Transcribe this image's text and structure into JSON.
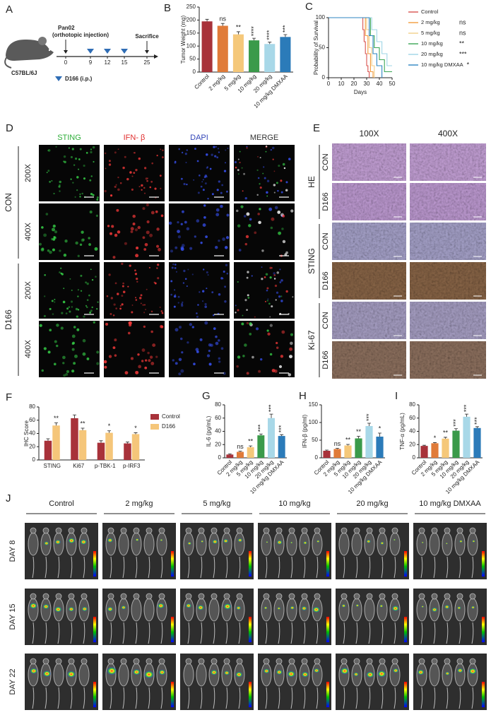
{
  "panel_labels": [
    "A",
    "B",
    "C",
    "D",
    "E",
    "F",
    "G",
    "H",
    "I",
    "J"
  ],
  "timeline": {
    "strain": "C57BL/6J",
    "injection": "Pan02",
    "injection_note": "(orthotopic injection)",
    "days": [
      0,
      9,
      12,
      15,
      25
    ],
    "sacrifice": "Sacrifice",
    "treatment": "D166 (i.p.)"
  },
  "chart_data": [
    {
      "type": "bar",
      "ylabel": "Tumor Weight (mg)",
      "categories": [
        "Control",
        "2 mg/kg",
        "5 mg/kg",
        "10 mg/kg",
        "20 mg/kg",
        "10 mg/kg DMXAA"
      ],
      "values": [
        195,
        178,
        145,
        122,
        108,
        135
      ],
      "errors": [
        8,
        9,
        10,
        8,
        7,
        9
      ],
      "colors": [
        "#a8323a",
        "#e07b39",
        "#f5c87a",
        "#3a9a4a",
        "#a8d8e8",
        "#2b7bb9"
      ],
      "annotations": [
        null,
        "ns",
        "**",
        "****",
        "****",
        "***"
      ],
      "ylim": [
        0,
        250
      ],
      "yticks": [
        0,
        50,
        100,
        150,
        200,
        250
      ]
    },
    {
      "type": "line",
      "step": true,
      "xlabel": "Days",
      "ylabel": "Probability of Survival",
      "xlim": [
        0,
        50
      ],
      "xticks": [
        0,
        10,
        20,
        30,
        40,
        50
      ],
      "ylim": [
        0,
        100
      ],
      "yticks": [
        0,
        50,
        100
      ],
      "series": [
        {
          "name": "Control",
          "color": "#d9534f",
          "annotation": null,
          "x": [
            0,
            26,
            27,
            28,
            29,
            30,
            31,
            32
          ],
          "values": [
            100,
            100,
            80,
            60,
            40,
            20,
            10,
            0
          ]
        },
        {
          "name": "2 mg/kg",
          "color": "#f39c3d",
          "annotation": "ns",
          "x": [
            0,
            27,
            29,
            31,
            33,
            35
          ],
          "values": [
            100,
            100,
            70,
            40,
            10,
            0
          ]
        },
        {
          "name": "5 mg/kg",
          "color": "#f2cf8a",
          "annotation": "ns",
          "x": [
            0,
            28,
            30,
            32,
            34,
            36
          ],
          "values": [
            100,
            100,
            80,
            50,
            20,
            0
          ]
        },
        {
          "name": "10 mg/kg",
          "color": "#3aa655",
          "annotation": "**",
          "x": [
            0,
            30,
            33,
            36,
            40,
            44,
            50
          ],
          "values": [
            100,
            100,
            70,
            50,
            30,
            10,
            10
          ]
        },
        {
          "name": "20 mg/kg",
          "color": "#9fd6e6",
          "annotation": "***",
          "x": [
            0,
            31,
            34,
            38,
            42,
            46,
            50
          ],
          "values": [
            100,
            100,
            80,
            60,
            40,
            20,
            20
          ]
        },
        {
          "name": "10 mg/kg DMXAA",
          "color": "#2e86c1",
          "annotation": "*",
          "x": [
            0,
            29,
            32,
            35,
            38,
            42
          ],
          "values": [
            100,
            100,
            70,
            40,
            20,
            0
          ]
        }
      ]
    },
    {
      "type": "grouped_bar",
      "ylabel": "IHC Score",
      "categories": [
        "STING",
        "Ki67",
        "p-TBK-1",
        "p-IRF3"
      ],
      "series": [
        {
          "name": "Control",
          "color": "#a8323a",
          "values": [
            29,
            63,
            26,
            25
          ],
          "errors": [
            3,
            5,
            3,
            2
          ]
        },
        {
          "name": "D166",
          "color": "#f5c67a",
          "values": [
            52,
            45,
            41,
            39
          ],
          "errors": [
            4,
            3,
            3,
            2
          ]
        }
      ],
      "annotations": [
        "**",
        "**",
        "*",
        "*"
      ],
      "ylim": [
        0,
        80
      ],
      "yticks": [
        0,
        20,
        40,
        60,
        80
      ]
    },
    {
      "type": "bar",
      "ylabel": "IL-6 (pg/mL)",
      "categories": [
        "Control",
        "2 mg/kg",
        "5 mg/kg",
        "10 mg/kg",
        "20 mg/kg",
        "10 mg/kg DMXAA"
      ],
      "values": [
        5,
        9,
        16,
        34,
        60,
        33
      ],
      "errors": [
        1,
        1,
        2,
        2,
        6,
        2
      ],
      "colors": [
        "#a8323a",
        "#e07b39",
        "#f5c87a",
        "#3a9a4a",
        "#a8d8e8",
        "#2b7bb9"
      ],
      "annotations": [
        null,
        "ns",
        "**",
        "***",
        "***",
        "***"
      ],
      "ylim": [
        0,
        80
      ],
      "yticks": [
        0,
        20,
        40,
        60,
        80
      ]
    },
    {
      "type": "bar",
      "ylabel": "IFN-β (pg/ml)",
      "categories": [
        "Control",
        "2 mg/kg",
        "5 mg/kg",
        "10 mg/kg",
        "20 mg/kg",
        "10 mg/kg DMXAA"
      ],
      "values": [
        20,
        25,
        35,
        55,
        90,
        60
      ],
      "errors": [
        2,
        2,
        3,
        6,
        8,
        10
      ],
      "colors": [
        "#a8323a",
        "#e07b39",
        "#f5c87a",
        "#3a9a4a",
        "#a8d8e8",
        "#2b7bb9"
      ],
      "annotations": [
        null,
        "ns",
        "**",
        "**",
        "***",
        "*"
      ],
      "ylim": [
        0,
        150
      ],
      "yticks": [
        0,
        50,
        100,
        150
      ]
    },
    {
      "type": "bar",
      "ylabel": "TNF-α (pg/mL)",
      "categories": [
        "Control",
        "2 mg/kg",
        "5 mg/kg",
        "10 mg/kg",
        "20 mg/kg",
        "10 mg/kg DMXAA"
      ],
      "values": [
        18,
        22,
        29,
        41,
        62,
        45
      ],
      "errors": [
        1,
        1,
        2,
        3,
        4,
        2
      ],
      "colors": [
        "#a8323a",
        "#e07b39",
        "#f5c87a",
        "#3a9a4a",
        "#a8d8e8",
        "#2b7bb9"
      ],
      "annotations": [
        null,
        "*",
        "**",
        "***",
        "***",
        "***"
      ],
      "ylim": [
        0,
        80
      ],
      "yticks": [
        0,
        20,
        40,
        60,
        80
      ]
    }
  ],
  "if_panel": {
    "columns": [
      "STING",
      "IFN- β",
      "DAPI",
      "MERGE"
    ],
    "groups": [
      "CON",
      "D166"
    ],
    "magnifications": [
      "200X",
      "400X"
    ]
  },
  "ihc_panel": {
    "columns": [
      "100X",
      "400X"
    ],
    "stains": [
      "HE",
      "STING",
      "Ki-67"
    ],
    "groups": [
      "CON",
      "D166"
    ]
  },
  "imaging_panel": {
    "groups": [
      "Control",
      "2 mg/kg",
      "5 mg/kg",
      "10 mg/kg",
      "20 mg/kg",
      "10 mg/kg DMXAA"
    ],
    "days": [
      "DAY 8",
      "DAY 15",
      "DAY 22"
    ]
  }
}
